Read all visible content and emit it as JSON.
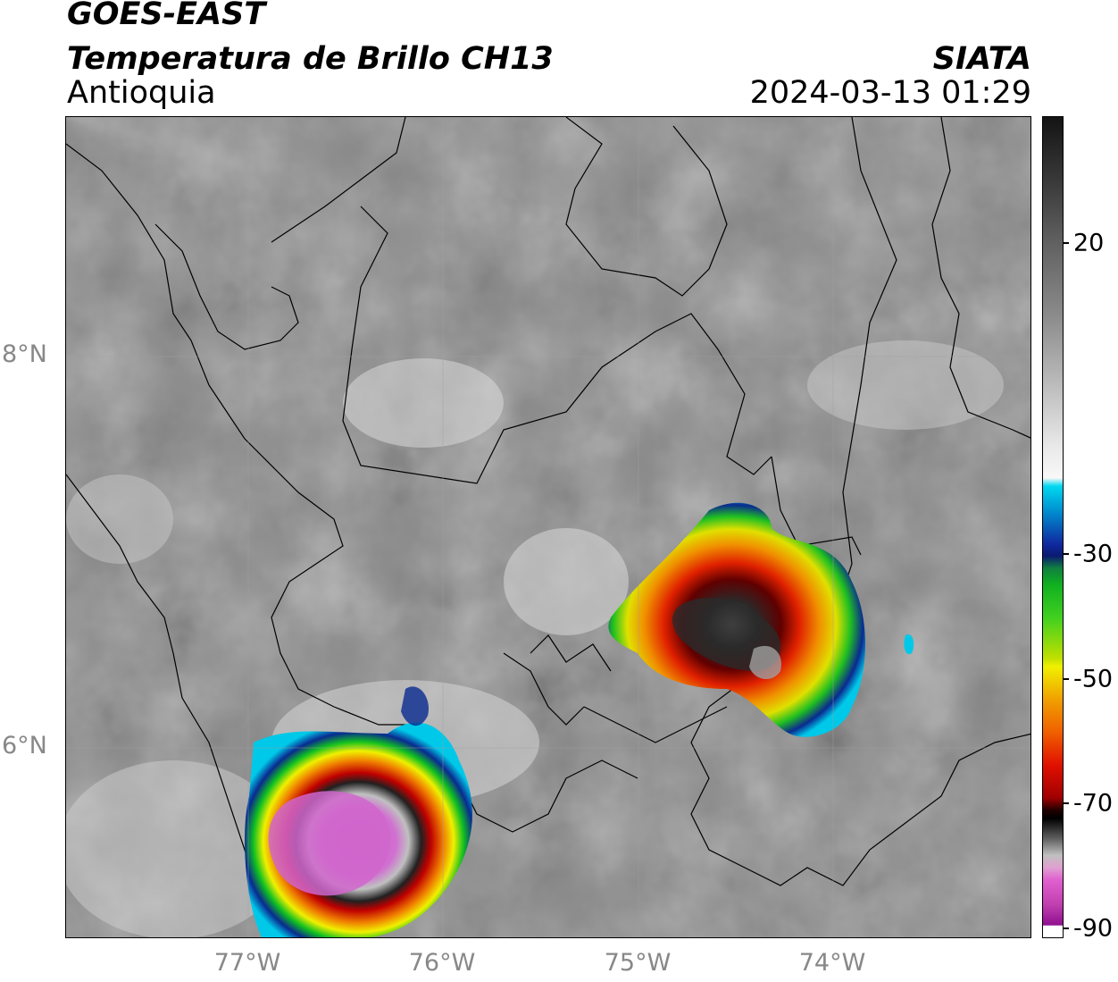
{
  "header": {
    "satellite": "GOES-EAST",
    "product": "Temperatura de Brillo CH13",
    "region": "Antioquia",
    "agency": "SIATA",
    "timestamp": "2024-03-13 01:29"
  },
  "map": {
    "lat_ticks": [
      "8°N",
      "6°N"
    ],
    "lon_ticks": [
      "77°W",
      "76°W",
      "75°W",
      "74°W"
    ]
  },
  "colorbar": {
    "tick_labels": [
      "20",
      "-30",
      "-50",
      "-70",
      "-90"
    ],
    "colors": {
      "warm_dark": "#1a1a1a",
      "gray_mid": "#808080",
      "white": "#f4f4f4",
      "cyan": "#00c8e8",
      "blue": "#0a1a90",
      "green": "#10c020",
      "yellow": "#f0f000",
      "orange": "#f08000",
      "red": "#d00000",
      "black": "#000000",
      "magenta": "#e060d0",
      "purple": "#901090"
    }
  }
}
